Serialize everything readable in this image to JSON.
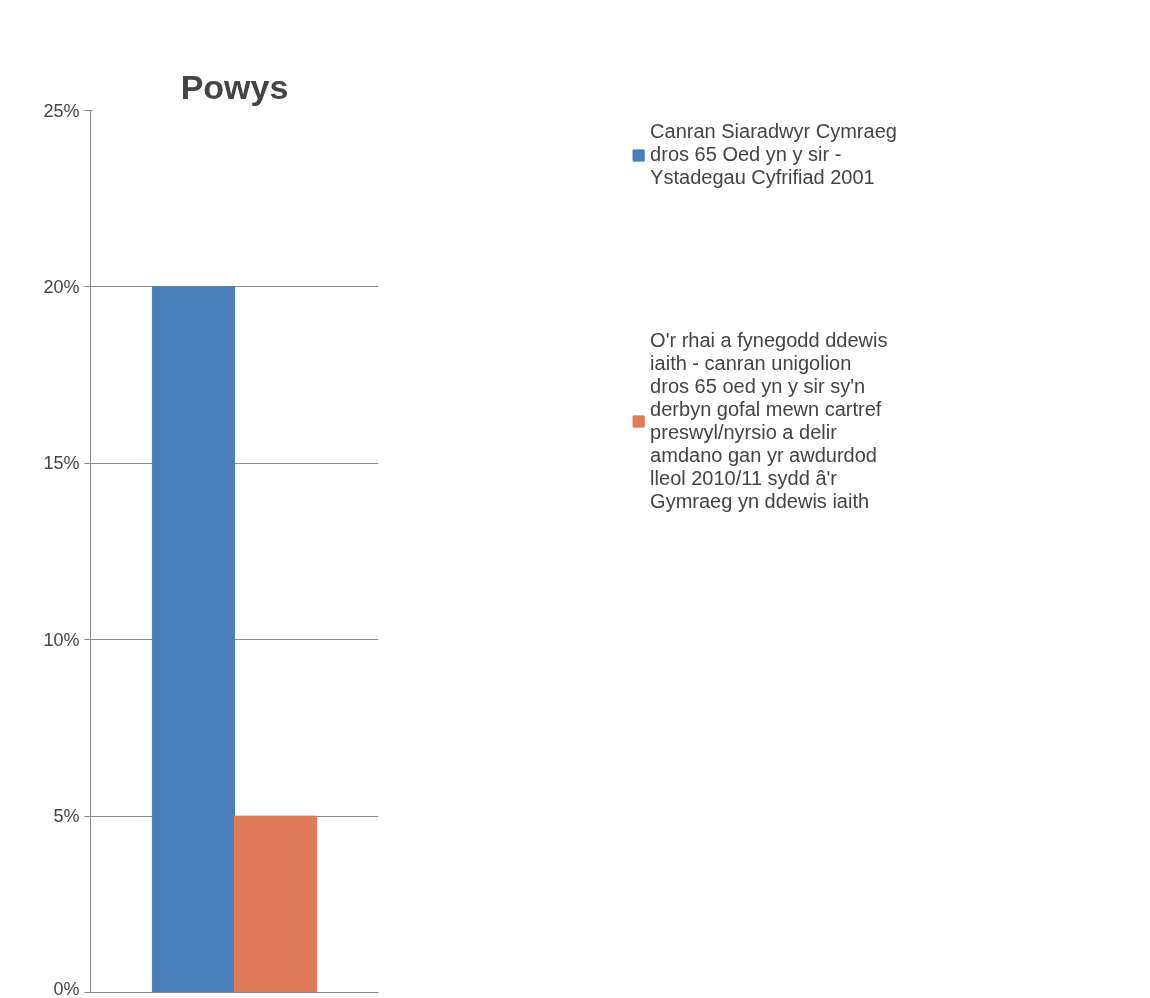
{
  "chart_data": {
    "type": "bar",
    "title": "Powys",
    "categories": [
      null
    ],
    "series": [
      {
        "name": "Canran Siaradwyr Cymraeg dros 65 Oed yn y sir - Ystadegau Cyfrifiad 2001",
        "color": "#4a7ebb",
        "values": [
          20
        ]
      },
      {
        "name": "O'r rhai a fynegodd ddewis iaith - canran unigolion dros 65 oed yn y sir sy'n derbyn gofal mewn cartref preswyl/nyrsio a delir amdano gan yr awdurdod lleol 2010/11 sydd â'r Gymraeg yn ddewis iaith",
        "color": "#e07b5a",
        "values": [
          5
        ]
      }
    ],
    "ylim": [
      0,
      25
    ],
    "yticks": [
      {
        "value": 0,
        "label": "0%"
      },
      {
        "value": 5,
        "label": "5%"
      },
      {
        "value": 10,
        "label": "10%"
      },
      {
        "value": 15,
        "label": "15%"
      },
      {
        "value": 20,
        "label": "20%"
      },
      {
        "value": 25,
        "label": "25%"
      }
    ],
    "grid": "y",
    "legend": "right"
  }
}
